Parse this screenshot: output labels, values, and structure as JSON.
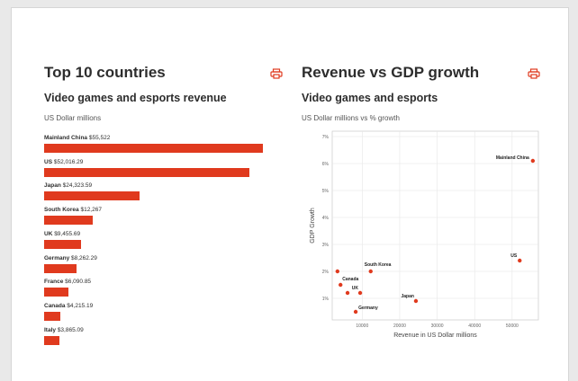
{
  "colors": {
    "accent": "#e03a1e",
    "grid": "#e6e6e6",
    "plot_border": "#cfcfcf"
  },
  "left_panel": {
    "title": "Top 10 countries",
    "subtitle": "Video games and esports revenue",
    "unit": "US Dollar millions",
    "print_icon": "printer-icon"
  },
  "right_panel": {
    "title": "Revenue vs GDP growth",
    "subtitle": "Video games and esports",
    "unit": "US Dollar millions vs % growth",
    "print_icon": "printer-icon"
  },
  "chart_data": [
    {
      "type": "bar",
      "orientation": "horizontal",
      "categories": [
        "Mainland China",
        "US",
        "Japan",
        "South Korea",
        "UK",
        "Germany",
        "France",
        "Canada",
        "Italy"
      ],
      "value_labels": [
        "$55,522",
        "$52,016.29",
        "$24,323.59",
        "$12,267",
        "$9,455.69",
        "$8,262.29",
        "$6,090.85",
        "$4,215.19",
        "$3,865.09"
      ],
      "values": [
        55522,
        52016.29,
        24323.59,
        12267,
        9455.69,
        8262.29,
        6090.85,
        4215.19,
        3865.09
      ],
      "xlim": [
        0,
        56000
      ]
    },
    {
      "type": "scatter",
      "xlabel": "Revenue in US Dollar millions",
      "ylabel": "GDP Growth",
      "xlim": [
        2000,
        57000
      ],
      "ylim": [
        0.2,
        7.2
      ],
      "x_ticks": [
        10000,
        20000,
        30000,
        40000,
        50000
      ],
      "x_tick_labels": [
        "10000",
        "20000",
        "30000",
        "40000",
        "50000"
      ],
      "y_ticks": [
        1,
        2,
        3,
        4,
        5,
        6,
        7
      ],
      "y_tick_labels": [
        "1%",
        "2%",
        "3%",
        "4%",
        "5%",
        "6%",
        "7%"
      ],
      "grid": true,
      "points": [
        {
          "x": 55522,
          "y": 6.1,
          "label": "Mainland China"
        },
        {
          "x": 52016,
          "y": 2.4,
          "label": "US"
        },
        {
          "x": 24324,
          "y": 0.9,
          "label": "Japan"
        },
        {
          "x": 12267,
          "y": 2.0,
          "label": "South Korea"
        },
        {
          "x": 3400,
          "y": 2.0,
          "label": ""
        },
        {
          "x": 9456,
          "y": 1.2,
          "label": "UK"
        },
        {
          "x": 8262,
          "y": 0.5,
          "label": "Germany"
        },
        {
          "x": 6091,
          "y": 1.2,
          "label": ""
        },
        {
          "x": 4215,
          "y": 1.5,
          "label": "Canada"
        }
      ]
    }
  ]
}
